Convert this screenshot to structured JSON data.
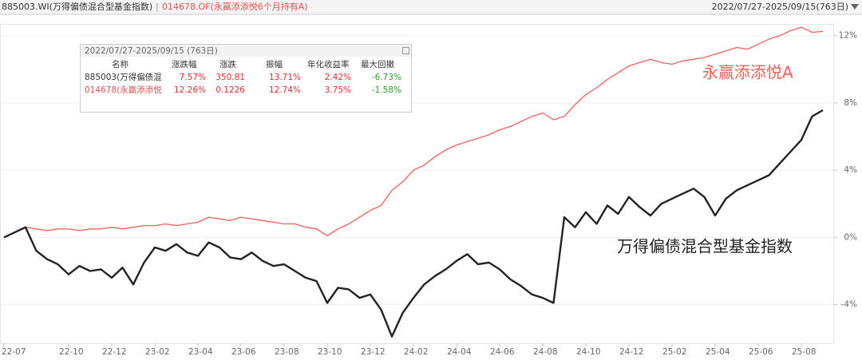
{
  "header": {
    "index_name": "885003.WI(万得偏债混合型基金指数)",
    "fund_name": "014678.OF(永赢添添悦6个月持有A)",
    "range": "2022/07/27-2025/09/15(763日)"
  },
  "stats_table": {
    "title": "2022/07/27-2025/09/15 (763日)",
    "columns": [
      "名称",
      "涨跌幅",
      "涨跌",
      "振幅",
      "年化收益率",
      "最大回撤"
    ],
    "rows": [
      [
        "885003(万得偏债混",
        "7.57%",
        "350.81",
        "13.71%",
        "2.42%",
        "-6.73%"
      ],
      [
        "014678(永赢添添悦",
        "12.26%",
        "0.1226",
        "12.74%",
        "3.75%",
        "-1.58%"
      ]
    ]
  },
  "chart_data": {
    "type": "line",
    "categories": [
      "22-07",
      null,
      null,
      null,
      null,
      null,
      "22-10",
      null,
      null,
      null,
      "22-12",
      null,
      null,
      null,
      "23-02",
      null,
      null,
      null,
      "23-04",
      null,
      null,
      null,
      "23-06",
      null,
      null,
      null,
      "23-08",
      null,
      null,
      null,
      "23-10",
      null,
      null,
      null,
      "23-12",
      null,
      null,
      null,
      "24-02",
      null,
      null,
      null,
      "24-04",
      null,
      null,
      null,
      "24-06",
      null,
      null,
      null,
      "24-08",
      null,
      null,
      null,
      "24-10",
      null,
      null,
      null,
      "24-12",
      null,
      null,
      null,
      "25-02",
      null,
      null,
      null,
      "25-04",
      null,
      null,
      null,
      "25-06",
      null,
      null,
      null,
      "25-08",
      null,
      null
    ],
    "series": [
      {
        "name": "万得偏债混合型基金指数",
        "color": "#222222",
        "values": [
          0,
          0.3,
          0.6,
          -0.8,
          -1.3,
          -1.6,
          -2.2,
          -1.7,
          -2.0,
          -1.9,
          -2.4,
          -1.8,
          -2.8,
          -1.5,
          -0.6,
          -0.8,
          -0.4,
          -0.9,
          -1.1,
          -0.3,
          -0.6,
          -1.2,
          -1.3,
          -0.9,
          -1.4,
          -1.7,
          -1.6,
          -2.0,
          -2.4,
          -2.6,
          -3.9,
          -3.0,
          -3.1,
          -3.6,
          -3.4,
          -4.3,
          -5.9,
          -4.5,
          -3.6,
          -2.8,
          -2.3,
          -1.9,
          -1.4,
          -1.0,
          -1.6,
          -1.5,
          -1.9,
          -2.5,
          -2.9,
          -3.4,
          -3.6,
          -3.9,
          1.2,
          0.6,
          1.5,
          0.8,
          1.9,
          1.4,
          2.4,
          1.8,
          1.3,
          2.0,
          2.3,
          2.6,
          2.9,
          2.4,
          1.3,
          2.3,
          2.8,
          3.1,
          3.4,
          3.7,
          4.4,
          5.1,
          5.8,
          7.2,
          7.57
        ]
      },
      {
        "name": "永赢添添悦A",
        "color": "#f0605a",
        "values": [
          0,
          0.3,
          0.6,
          0.5,
          0.4,
          0.5,
          0.5,
          0.4,
          0.5,
          0.5,
          0.6,
          0.5,
          0.6,
          0.7,
          0.7,
          0.8,
          0.7,
          0.8,
          0.9,
          1.2,
          1.1,
          1.0,
          1.2,
          1.1,
          1.0,
          0.9,
          0.8,
          0.8,
          0.6,
          0.5,
          0.1,
          0.5,
          0.8,
          1.2,
          1.6,
          1.9,
          2.8,
          3.3,
          4.0,
          4.3,
          4.8,
          5.2,
          5.5,
          5.7,
          5.9,
          6.1,
          6.4,
          6.6,
          6.9,
          7.2,
          7.4,
          7.0,
          7.2,
          7.9,
          8.5,
          8.9,
          9.4,
          9.8,
          10.2,
          10.4,
          10.6,
          10.4,
          10.3,
          10.5,
          10.6,
          10.7,
          10.9,
          11.1,
          11.3,
          11.2,
          11.5,
          11.8,
          12.0,
          12.3,
          12.5,
          12.2,
          12.26
        ]
      }
    ],
    "ylim": [
      -6.3,
      12.7
    ],
    "yticks": [
      {
        "value": -4,
        "label": "-4%"
      },
      {
        "value": 0,
        "label": "0%"
      },
      {
        "value": 4,
        "label": "4%"
      },
      {
        "value": 8,
        "label": "8%"
      },
      {
        "value": 12,
        "label": "12%"
      }
    ],
    "grid": true
  }
}
